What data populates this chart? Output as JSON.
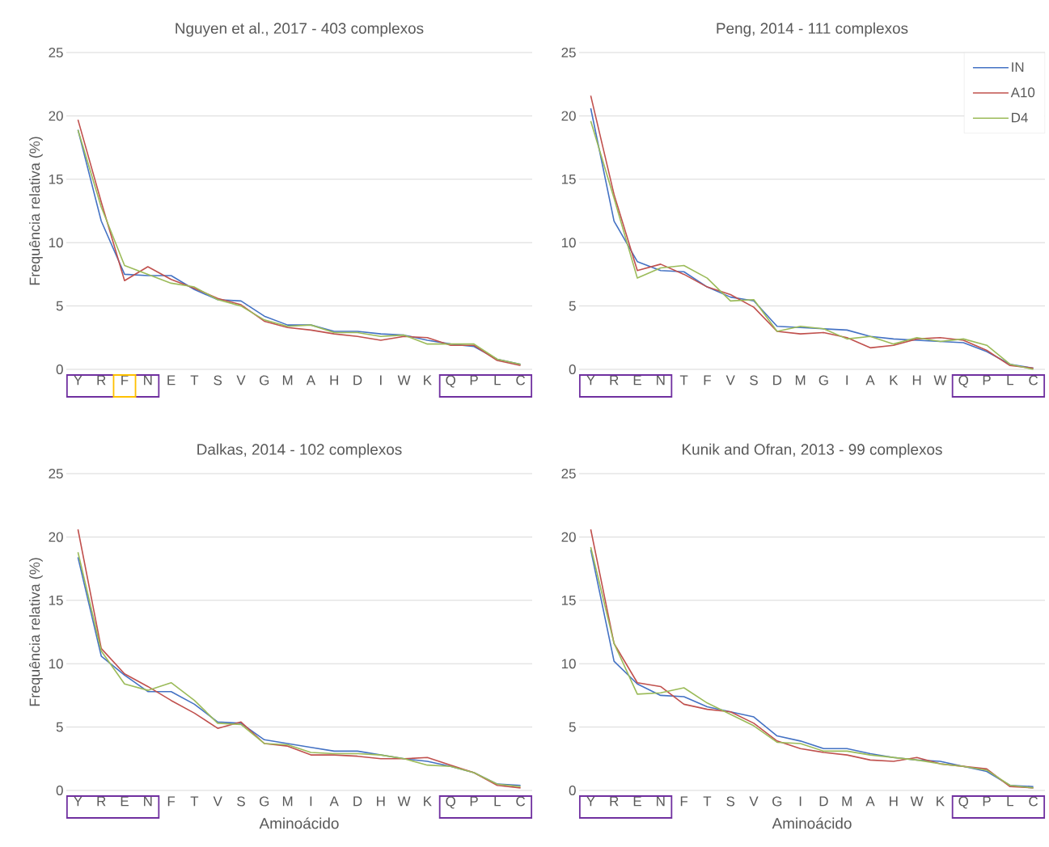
{
  "chart_data": [
    {
      "type": "line",
      "title": "Nguyen et al., 2017 - 403 complexos",
      "ylabel": "Frequência relativa (%)",
      "categories": [
        "Y",
        "R",
        "F",
        "N",
        "E",
        "T",
        "S",
        "V",
        "G",
        "M",
        "A",
        "H",
        "D",
        "I",
        "W",
        "K",
        "Q",
        "P",
        "L",
        "C"
      ],
      "ylim": [
        0,
        25
      ],
      "yticks": [
        0,
        5,
        10,
        15,
        20,
        25
      ],
      "grid": "y",
      "series": [
        {
          "color": "#4472c4",
          "values": [
            18.9,
            11.7,
            7.5,
            7.4,
            7.4,
            6.3,
            5.5,
            5.4,
            4.2,
            3.5,
            3.5,
            3.0,
            3.0,
            2.8,
            2.7,
            2.3,
            2.0,
            1.8,
            0.8,
            0.4
          ]
        },
        {
          "color": "#c0504d",
          "values": [
            19.7,
            13.2,
            7.0,
            8.1,
            7.1,
            6.4,
            5.6,
            5.1,
            3.8,
            3.3,
            3.1,
            2.8,
            2.6,
            2.3,
            2.6,
            2.5,
            1.9,
            1.9,
            0.7,
            0.3
          ]
        },
        {
          "color": "#9bbb59",
          "values": [
            18.9,
            12.8,
            8.2,
            7.5,
            6.8,
            6.5,
            5.5,
            5.0,
            3.9,
            3.4,
            3.5,
            2.9,
            2.9,
            2.6,
            2.7,
            2.0,
            2.0,
            2.0,
            0.8,
            0.4
          ]
        }
      ]
    },
    {
      "type": "line",
      "title": "Peng, 2014 - 111 complexos",
      "categories": [
        "Y",
        "R",
        "E",
        "N",
        "T",
        "F",
        "V",
        "S",
        "D",
        "M",
        "G",
        "I",
        "A",
        "K",
        "H",
        "W",
        "Q",
        "P",
        "L",
        "C"
      ],
      "ylim": [
        0,
        25
      ],
      "yticks": [
        0,
        5,
        10,
        15,
        20,
        25
      ],
      "grid": "y",
      "legend": "top right",
      "series": [
        {
          "name": "IN",
          "color": "#4472c4",
          "values": [
            20.6,
            11.7,
            8.5,
            7.8,
            7.7,
            6.5,
            5.7,
            5.4,
            3.4,
            3.3,
            3.2,
            3.1,
            2.6,
            2.4,
            2.3,
            2.2,
            2.1,
            1.4,
            0.4,
            0.1
          ]
        },
        {
          "name": "A10",
          "color": "#c0504d",
          "values": [
            21.6,
            13.8,
            7.8,
            8.3,
            7.5,
            6.5,
            5.9,
            4.9,
            3.0,
            2.8,
            2.9,
            2.5,
            1.7,
            1.9,
            2.4,
            2.5,
            2.3,
            1.5,
            0.3,
            0.1
          ]
        },
        {
          "name": "D4",
          "color": "#9bbb59",
          "values": [
            19.6,
            13.5,
            7.2,
            8.0,
            8.2,
            7.2,
            5.4,
            5.5,
            3.0,
            3.4,
            3.2,
            2.4,
            2.6,
            2.0,
            2.5,
            2.2,
            2.4,
            1.9,
            0.4,
            0.0
          ]
        }
      ]
    },
    {
      "type": "line",
      "title": "Dalkas, 2014 -  102 complexos",
      "ylabel": "Frequência relativa (%)",
      "xlabel": "Aminoácido",
      "categories": [
        "Y",
        "R",
        "E",
        "N",
        "F",
        "T",
        "V",
        "S",
        "G",
        "M",
        "I",
        "A",
        "D",
        "H",
        "W",
        "K",
        "Q",
        "P",
        "L",
        "C"
      ],
      "ylim": [
        0,
        25
      ],
      "yticks": [
        0,
        5,
        10,
        15,
        20,
        25
      ],
      "grid": "y",
      "series": [
        {
          "color": "#4472c4",
          "values": [
            18.4,
            10.6,
            9.1,
            7.8,
            7.8,
            6.8,
            5.4,
            5.3,
            4.0,
            3.7,
            3.4,
            3.1,
            3.1,
            2.8,
            2.5,
            2.3,
            1.9,
            1.4,
            0.5,
            0.4
          ]
        },
        {
          "color": "#c0504d",
          "values": [
            20.6,
            11.2,
            9.2,
            8.2,
            7.1,
            6.1,
            4.9,
            5.4,
            3.7,
            3.5,
            2.8,
            2.8,
            2.7,
            2.5,
            2.5,
            2.6,
            2.0,
            1.4,
            0.4,
            0.2
          ]
        },
        {
          "color": "#9bbb59",
          "values": [
            18.8,
            11.0,
            8.4,
            7.9,
            8.5,
            7.1,
            5.3,
            5.2,
            3.7,
            3.6,
            3.0,
            2.9,
            2.9,
            2.8,
            2.5,
            2.0,
            1.9,
            1.4,
            0.5,
            0.3
          ]
        }
      ]
    },
    {
      "type": "line",
      "title": "Kunik and Ofran, 2013 - 99 complexos",
      "xlabel": "Aminoácido",
      "categories": [
        "Y",
        "R",
        "E",
        "N",
        "F",
        "T",
        "S",
        "V",
        "G",
        "I",
        "D",
        "M",
        "A",
        "H",
        "W",
        "K",
        "Q",
        "P",
        "L",
        "C"
      ],
      "ylim": [
        0,
        25
      ],
      "yticks": [
        0,
        5,
        10,
        15,
        20,
        25
      ],
      "grid": "y",
      "series": [
        {
          "color": "#4472c4",
          "values": [
            19.0,
            10.2,
            8.4,
            7.5,
            7.4,
            6.6,
            6.2,
            5.8,
            4.3,
            3.9,
            3.3,
            3.3,
            2.9,
            2.6,
            2.4,
            2.3,
            1.9,
            1.5,
            0.4,
            0.3
          ]
        },
        {
          "color": "#c0504d",
          "values": [
            20.6,
            11.6,
            8.5,
            8.2,
            6.8,
            6.4,
            6.2,
            5.3,
            3.9,
            3.3,
            3.0,
            2.8,
            2.4,
            2.3,
            2.6,
            2.1,
            1.9,
            1.7,
            0.3,
            0.2
          ]
        },
        {
          "color": "#9bbb59",
          "values": [
            19.2,
            11.6,
            7.6,
            7.7,
            8.1,
            6.9,
            6.0,
            5.1,
            3.8,
            3.7,
            3.1,
            3.1,
            2.8,
            2.6,
            2.4,
            2.1,
            1.9,
            1.6,
            0.4,
            0.2
          ]
        }
      ]
    }
  ]
}
